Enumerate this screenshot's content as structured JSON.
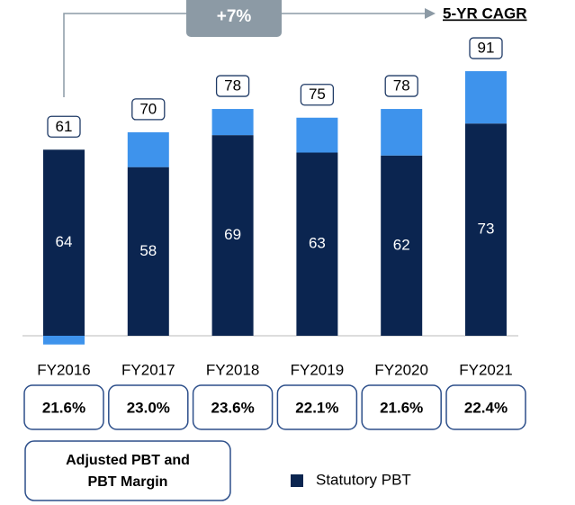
{
  "chart_data": {
    "type": "bar",
    "categories": [
      "FY2016",
      "FY2017",
      "FY2018",
      "FY2019",
      "FY2020",
      "FY2021"
    ],
    "series": [
      {
        "name": "Statutory PBT",
        "color": "#0b2550",
        "values": [
          64,
          58,
          69,
          63,
          62,
          73
        ]
      },
      {
        "color": "#3e93ec",
        "values": [
          -3,
          12,
          9,
          12,
          16,
          18
        ]
      }
    ],
    "totals": [
      61,
      70,
      78,
      75,
      78,
      91
    ],
    "margin_labels": [
      "21.6%",
      "23.0%",
      "23.6%",
      "22.1%",
      "21.6%",
      "22.4%"
    ],
    "margin_box_label": [
      "Adjusted PBT and",
      "PBT Margin"
    ],
    "cagr_label": "+7%",
    "cagr_title": "5-YR CAGR",
    "ylim": [
      0,
      100
    ]
  }
}
